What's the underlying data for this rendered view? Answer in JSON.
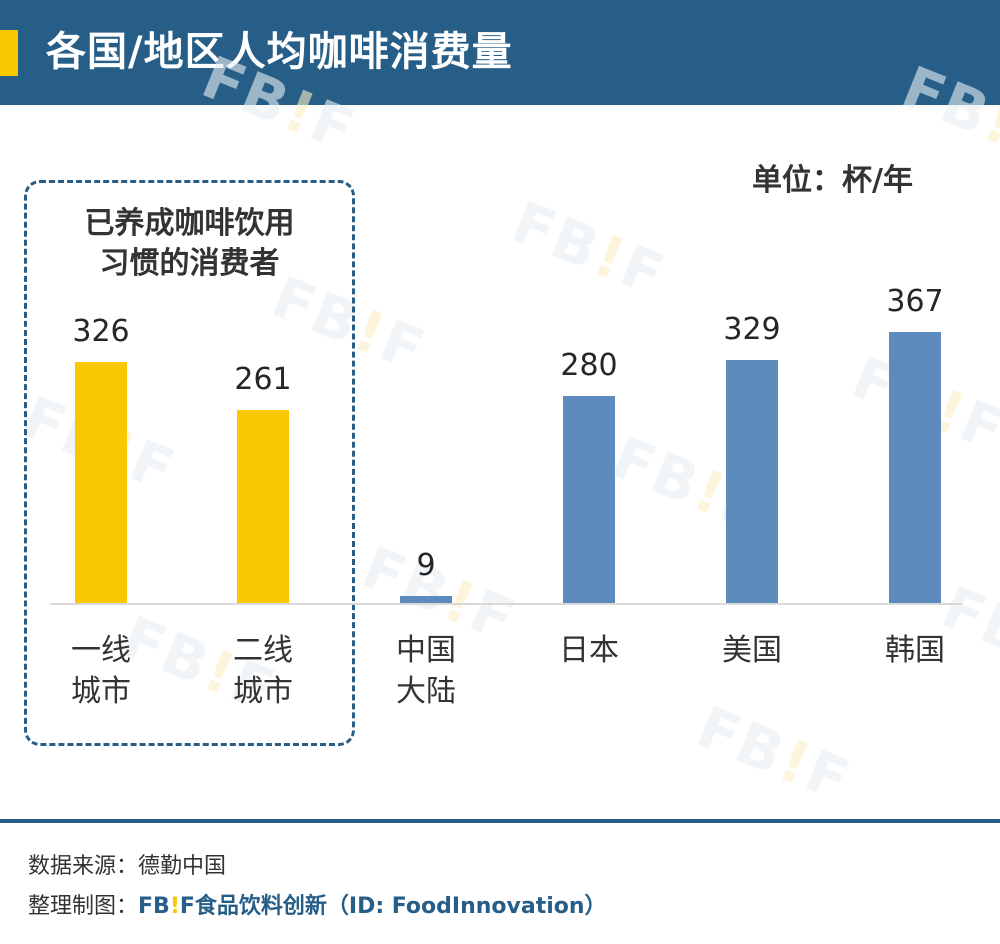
{
  "header": {
    "title": "各国/地区人均咖啡消费量",
    "accent_color": "#f9c800",
    "background_color": "#275e87"
  },
  "unit_label": "单位：杯/年",
  "highlight_group": {
    "label_line1": "已养成咖啡饮用",
    "label_line2": "习惯的消费者"
  },
  "watermark": {
    "text_a": "FB",
    "text_ex": "!",
    "text_b": "F"
  },
  "chart_data": {
    "type": "bar",
    "title": "各国/地区人均咖啡消费量",
    "xlabel": "",
    "ylabel": "单位：杯/年",
    "categories": [
      "一线城市",
      "二线城市",
      "中国大陆",
      "日本",
      "美国",
      "韩国"
    ],
    "category_lines": [
      [
        "一线",
        "城市"
      ],
      [
        "二线",
        "城市"
      ],
      [
        "中国",
        "大陆"
      ],
      [
        "日本",
        ""
      ],
      [
        "美国",
        ""
      ],
      [
        "韩国",
        ""
      ]
    ],
    "values": [
      326,
      261,
      9,
      280,
      329,
      367
    ],
    "colors": [
      "#f9c800",
      "#f9c800",
      "#5d8bbd",
      "#5d8bbd",
      "#5d8bbd",
      "#5d8bbd"
    ],
    "grid": false,
    "legend": "none",
    "annotation": "已养成咖啡饮用习惯的消费者 (一线城市, 二线城市)"
  },
  "footer": {
    "source_label": "数据来源：",
    "source_value": "德勤中国",
    "credit_label": "整理制图：",
    "brand_a": "FB",
    "brand_ex": "!",
    "brand_b": "F",
    "brand_name": "食品饮料创新（ID: FoodInnovation）"
  }
}
